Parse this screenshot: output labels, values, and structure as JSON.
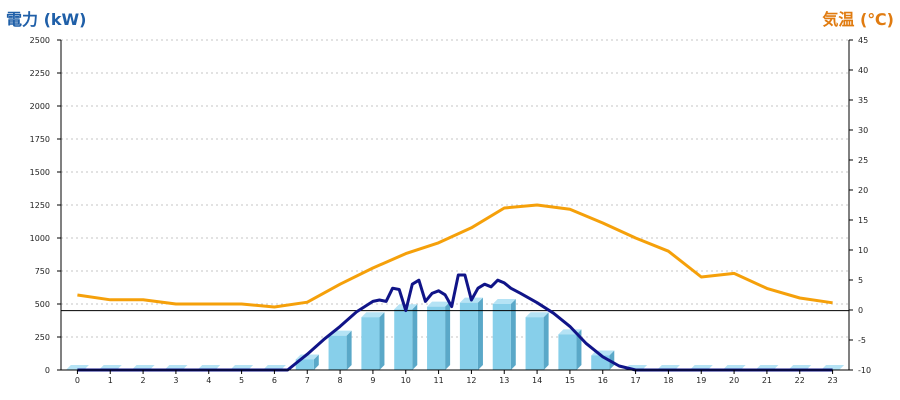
{
  "chart_data": {
    "type": "bar",
    "left_axis_title": "電力 (kW)",
    "right_axis_title": "気温 (℃)",
    "categories": [
      "0",
      "1",
      "2",
      "3",
      "4",
      "5",
      "6",
      "7",
      "8",
      "9",
      "10",
      "11",
      "12",
      "13",
      "14",
      "15",
      "16",
      "17",
      "18",
      "19",
      "20",
      "21",
      "22",
      "23"
    ],
    "left_ylim": [
      0,
      2500
    ],
    "left_ticks": [
      0,
      250,
      500,
      750,
      1000,
      1250,
      1500,
      1750,
      2000,
      2250,
      2500
    ],
    "right_ylim": [
      -10,
      45
    ],
    "right_ticks": [
      -10,
      -5,
      0,
      5,
      10,
      15,
      20,
      25,
      30,
      35,
      40,
      45
    ],
    "reference_line_kw": 450,
    "grid": true,
    "colors": {
      "bar": "#87cfea",
      "bar_side": "#5aa8c8",
      "bar_top": "#b5e3f5",
      "power_line": "#101488",
      "temperature_line": "#f5a00a",
      "reference": "#000000"
    },
    "bar_series": {
      "values": [
        0,
        0,
        0,
        0,
        0,
        0,
        0,
        80,
        260,
        400,
        460,
        480,
        510,
        500,
        400,
        270,
        110,
        0,
        0,
        0,
        0,
        0,
        0,
        0
      ]
    },
    "power_line_series": {
      "x": [
        0,
        1,
        2,
        3,
        4,
        5,
        6,
        6.4,
        7,
        7.5,
        8,
        8.5,
        9,
        9.2,
        9.4,
        9.6,
        9.8,
        10,
        10.2,
        10.4,
        10.6,
        10.8,
        11,
        11.2,
        11.4,
        11.6,
        11.8,
        12,
        12.2,
        12.4,
        12.6,
        12.8,
        13,
        13.2,
        13.5,
        14,
        14.5,
        15,
        15.5,
        16,
        16.5,
        17,
        18,
        19,
        20,
        21,
        22,
        23
      ],
      "values": [
        0,
        0,
        0,
        0,
        0,
        0,
        0,
        0,
        120,
        230,
        330,
        440,
        520,
        530,
        520,
        620,
        610,
        450,
        650,
        680,
        520,
        580,
        600,
        570,
        480,
        720,
        720,
        530,
        620,
        650,
        630,
        680,
        660,
        620,
        580,
        510,
        430,
        330,
        200,
        100,
        30,
        0,
        0,
        0,
        0,
        0,
        0,
        0
      ]
    },
    "temperature_series": {
      "values": [
        2.5,
        1.7,
        1.7,
        1.0,
        1.0,
        1.0,
        0.5,
        1.3,
        4.3,
        7.0,
        9.4,
        11.2,
        13.7,
        17.0,
        17.5,
        16.8,
        14.5,
        12.0,
        9.8,
        5.5,
        6.1,
        3.6,
        2.0,
        1.2
      ]
    }
  }
}
